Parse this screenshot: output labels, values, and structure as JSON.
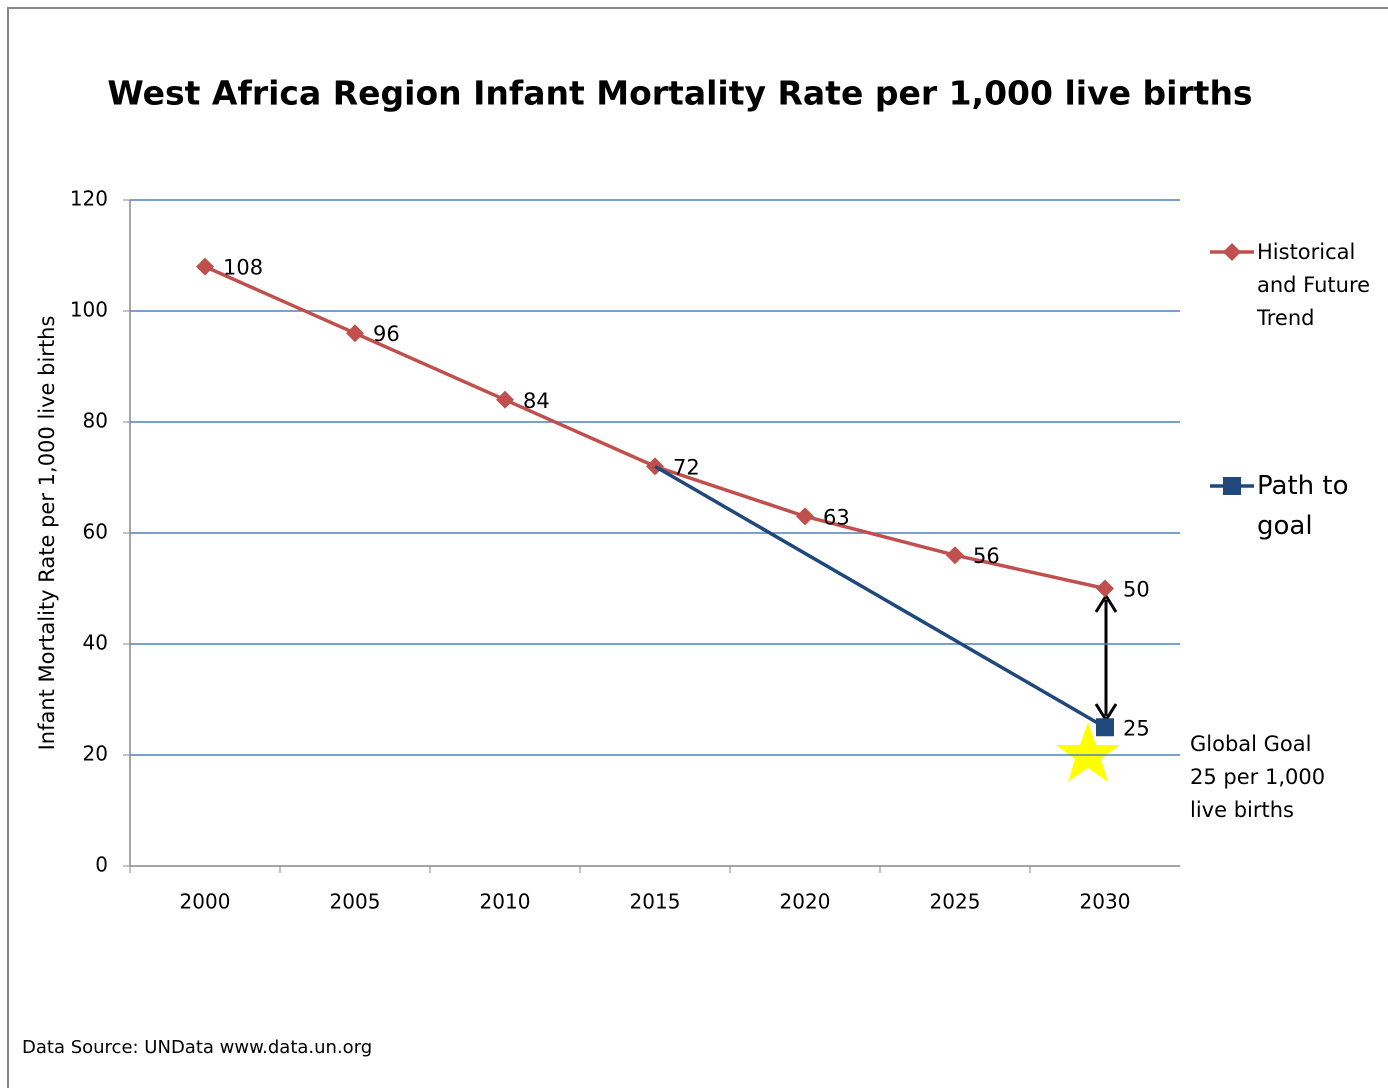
{
  "chart_data": {
    "type": "line",
    "title": "West Africa  Region Infant Mortality Rate per 1,000 live births",
    "y_label": "Infant Mortality Rate per 1,000 live births",
    "categories": [
      2000,
      2005,
      2010,
      2015,
      2020,
      2025,
      2030
    ],
    "series": [
      {
        "name": "Historical and Future Trend",
        "color": "#c0504d",
        "marker": "diamond",
        "values": [
          108,
          96,
          84,
          72,
          63,
          56,
          50
        ]
      },
      {
        "name": "Path to goal",
        "color": "#1f497d",
        "marker": "square",
        "x": [
          2015,
          2030
        ],
        "values": [
          72,
          25
        ]
      }
    ],
    "ylim": [
      0,
      120
    ],
    "yticks": [
      0,
      20,
      40,
      60,
      80,
      100,
      120
    ],
    "grid": true,
    "legend": "right",
    "annotation": [
      "Global Goal",
      "25 per 1,000",
      "live births"
    ],
    "source": "Data Source: UNData www.data.un.org"
  }
}
